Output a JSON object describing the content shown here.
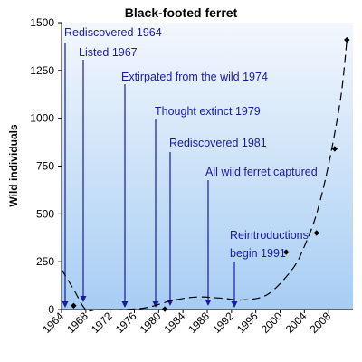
{
  "chart_data": {
    "type": "line",
    "title": "Black-footed ferret",
    "ylabel": "Wild individuals",
    "xlabel": "",
    "xlim": [
      1964,
      2012
    ],
    "ylim": [
      0,
      1500
    ],
    "x_ticks": [
      1964,
      1968,
      1972,
      1976,
      1980,
      1984,
      1988,
      1992,
      1996,
      2000,
      2004,
      2008
    ],
    "x_tick_labels": [
      "1964",
      "1968",
      "1972",
      "1976",
      "1980",
      "1984",
      "1988",
      "1992",
      "1996",
      "2000",
      "2004",
      "2008"
    ],
    "y_ticks": [
      0,
      250,
      500,
      750,
      1000,
      1250,
      1500
    ],
    "y_tick_labels": [
      "0",
      "250",
      "500",
      "750",
      "1000",
      "1250",
      "1500"
    ],
    "grid": false,
    "legend": "none",
    "colors": {
      "plot_top": "#f3f7fd",
      "plot_bottom": "#a7cdf3",
      "points": "#000000",
      "trend": "#000000",
      "annotation": "#1a1aa6"
    },
    "series": [
      {
        "style": "points",
        "x": [
          1966,
          1981,
          2001,
          2006,
          2009,
          2011
        ],
        "y": [
          20,
          2,
          300,
          400,
          840,
          1410
        ]
      },
      {
        "style": "dashed-line",
        "x": [
          1964,
          1966,
          1968,
          1970,
          1974,
          1978,
          1982,
          1986,
          1990,
          1994,
          1998,
          2002,
          2004,
          2006,
          2008,
          2010,
          2011
        ],
        "y": [
          210,
          105,
          0,
          0,
          0,
          10,
          45,
          65,
          60,
          50,
          80,
          210,
          330,
          500,
          760,
          1110,
          1410
        ]
      }
    ],
    "annotations": [
      {
        "text": "Rediscovered 1964",
        "x": 1964
      },
      {
        "text": "Listed 1967",
        "x": 1967
      },
      {
        "text": "Extirpated from the wild 1974",
        "x": 1974
      },
      {
        "text": "Thought extinct 1979",
        "x": 1979
      },
      {
        "text": "Rediscovered 1981",
        "x": 1981
      },
      {
        "text": "All wild ferret captured",
        "x": 1987
      },
      {
        "text": "Reintroductions",
        "x": 1991
      },
      {
        "text": "begin 1991",
        "x": 1991
      }
    ]
  }
}
